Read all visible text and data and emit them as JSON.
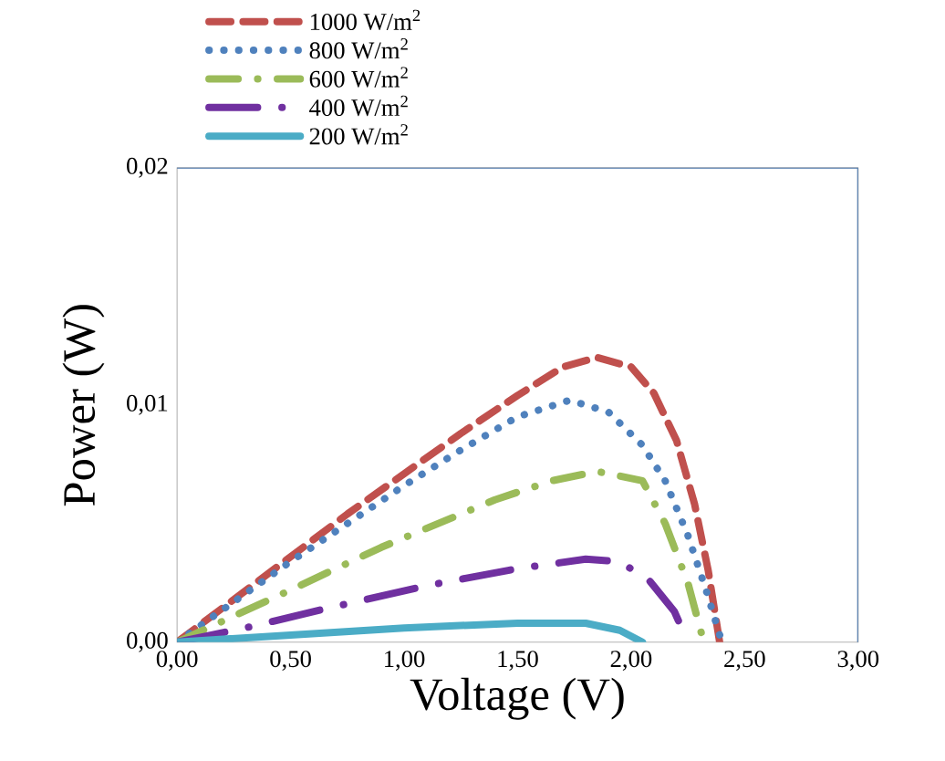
{
  "chart_data": {
    "type": "line",
    "xlabel": "Voltage (V)",
    "ylabel": "Power (W)",
    "xlim": [
      0,
      3
    ],
    "ylim": [
      0,
      0.02
    ],
    "xticks": [
      {
        "value": 0,
        "label": "0,00"
      },
      {
        "value": 0.5,
        "label": "0,50"
      },
      {
        "value": 1,
        "label": "1,00"
      },
      {
        "value": 1.5,
        "label": "1,50"
      },
      {
        "value": 2,
        "label": "2,00"
      },
      {
        "value": 2.5,
        "label": "2,50"
      },
      {
        "value": 3,
        "label": "3,00"
      }
    ],
    "yticks": [
      {
        "value": 0,
        "label": "0,00"
      },
      {
        "value": 0.01,
        "label": "0,01"
      },
      {
        "value": 0.02,
        "label": "0,02"
      }
    ],
    "grid": false,
    "legend": "top left",
    "marker": "none",
    "series": [
      {
        "name": "1000 W/m$^{2}$",
        "color": "#c0504d",
        "line_style": "dashed",
        "x": [
          0,
          0.25,
          0.5,
          0.75,
          1.0,
          1.25,
          1.5,
          1.7,
          1.85,
          2.0,
          2.1,
          2.2,
          2.28,
          2.34,
          2.39
        ],
        "values": [
          0,
          0.0018,
          0.0036,
          0.0054,
          0.0071,
          0.0088,
          0.0104,
          0.0116,
          0.012,
          0.0116,
          0.0105,
          0.0085,
          0.0058,
          0.003,
          0
        ]
      },
      {
        "name": "800 W/m$^{2}$",
        "color": "#4f81bd",
        "line_style": "dotted",
        "x": [
          0,
          0.25,
          0.5,
          0.75,
          1.0,
          1.25,
          1.5,
          1.73,
          1.9,
          2.05,
          2.15,
          2.25,
          2.33,
          2.4
        ],
        "values": [
          0,
          0.0017,
          0.0034,
          0.005,
          0.0066,
          0.0081,
          0.0095,
          0.0102,
          0.0097,
          0.0083,
          0.0068,
          0.0045,
          0.0022,
          0
        ]
      },
      {
        "name": "600 W/m$^{2}$",
        "color": "#9bbb59",
        "line_style": "dashdot",
        "x": [
          0,
          0.25,
          0.5,
          0.9,
          1.4,
          1.65,
          1.85,
          2.05,
          2.15,
          2.25,
          2.32
        ],
        "values": [
          0,
          0.0011,
          0.0022,
          0.004,
          0.006,
          0.0068,
          0.0072,
          0.0068,
          0.005,
          0.0025,
          0
        ]
      },
      {
        "name": "400 W/m$^{2}$",
        "color": "#7030a0",
        "line_style": "longdashdot",
        "x": [
          0,
          0.3,
          0.65,
          1.11,
          1.5,
          1.8,
          1.95,
          2.08,
          2.19,
          2.25
        ],
        "values": [
          0,
          0.0006,
          0.0014,
          0.0024,
          0.0031,
          0.0035,
          0.0034,
          0.0026,
          0.0013,
          0
        ]
      },
      {
        "name": "200 W/m$^{2}$",
        "color": "#4bacc6",
        "line_style": "solid",
        "x": [
          0,
          0.5,
          1.0,
          1.5,
          1.8,
          1.95,
          2.05
        ],
        "values": [
          0,
          0.0003,
          0.0006,
          0.0008,
          0.0008,
          0.0005,
          0
        ]
      }
    ]
  }
}
